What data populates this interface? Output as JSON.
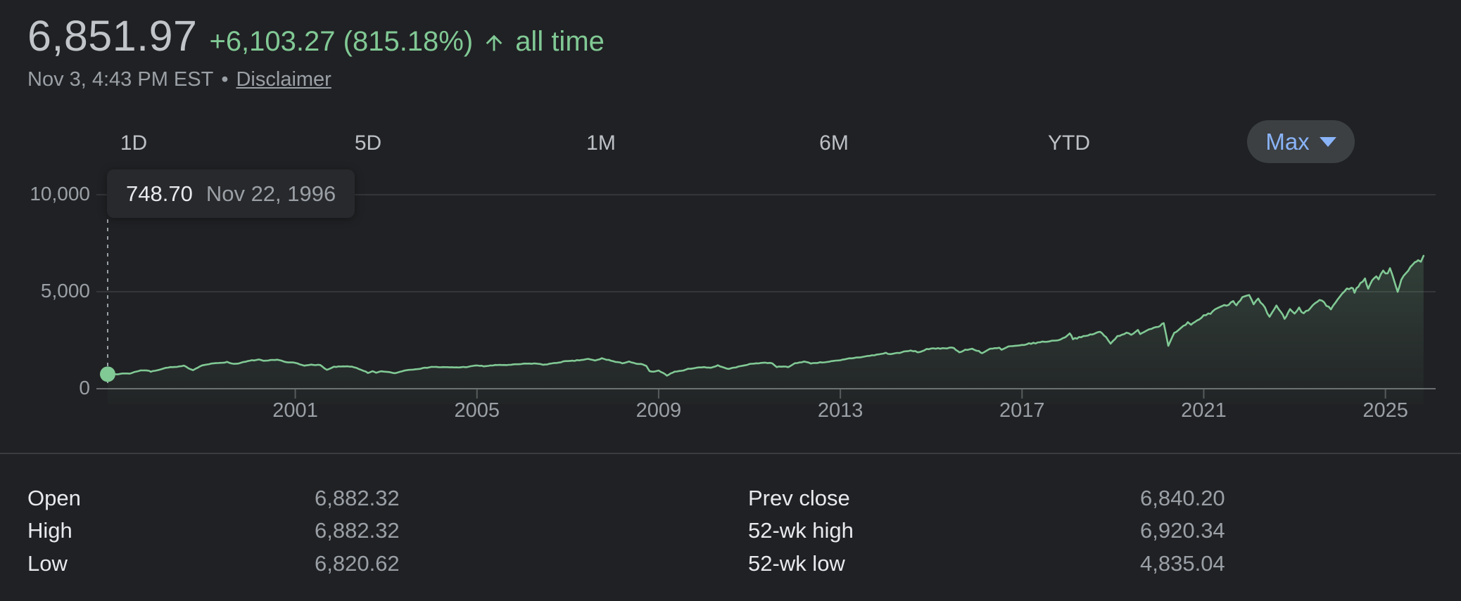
{
  "header": {
    "price": "6,851.97",
    "change": "+6,103.27 (815.18%)",
    "period": "all time",
    "timestamp": "Nov 3, 4:43 PM EST",
    "separator": "•",
    "disclaimer_label": "Disclaimer"
  },
  "colors": {
    "positive_green": "#81c995",
    "accent_blue": "#8ab4f8",
    "text_primary": "#e8eaed",
    "text_secondary": "#9aa0a6",
    "background": "#202124",
    "pill_background": "#3c4043"
  },
  "range_tabs": {
    "items": [
      {
        "label": "1D"
      },
      {
        "label": "5D"
      },
      {
        "label": "1M"
      },
      {
        "label": "6M"
      },
      {
        "label": "YTD"
      }
    ],
    "selected": {
      "label": "Max"
    }
  },
  "tooltip": {
    "value": "748.70",
    "date": "Nov 22, 1996"
  },
  "chart_data": {
    "type": "line",
    "title": "Index price history (Max range)",
    "legend": "none",
    "grid": "horizontal",
    "line_color": "#81c995",
    "x_range": [
      1996.87,
      2025.92
    ],
    "ylim": [
      0,
      10000
    ],
    "y_ticks": [
      {
        "label": "0",
        "value": 0
      },
      {
        "label": "5,000",
        "value": 5000
      },
      {
        "label": "10,000",
        "value": 10000
      }
    ],
    "x_ticks": [
      {
        "label": "2001",
        "year": 2001
      },
      {
        "label": "2005",
        "year": 2005
      },
      {
        "label": "2009",
        "year": 2009
      },
      {
        "label": "2013",
        "year": 2013
      },
      {
        "label": "2017",
        "year": 2017
      },
      {
        "label": "2021",
        "year": 2021
      },
      {
        "label": "2025",
        "year": 2025
      }
    ],
    "marker": {
      "x": 1996.87,
      "y": 748.7
    },
    "series": [
      {
        "name": "index-price",
        "points": [
          [
            1996.87,
            748.7
          ],
          [
            1997.0,
            757
          ],
          [
            1997.08,
            737
          ],
          [
            1997.2,
            790
          ],
          [
            1997.35,
            780
          ],
          [
            1997.45,
            850
          ],
          [
            1997.6,
            950
          ],
          [
            1997.75,
            940
          ],
          [
            1997.82,
            880
          ],
          [
            1998.0,
            980
          ],
          [
            1998.2,
            1100
          ],
          [
            1998.4,
            1120
          ],
          [
            1998.55,
            1180
          ],
          [
            1998.65,
            1060
          ],
          [
            1998.75,
            960
          ],
          [
            1998.9,
            1160
          ],
          [
            1999.0,
            1230
          ],
          [
            1999.2,
            1300
          ],
          [
            1999.35,
            1340
          ],
          [
            1999.5,
            1370
          ],
          [
            1999.65,
            1280
          ],
          [
            1999.8,
            1330
          ],
          [
            2000.0,
            1440
          ],
          [
            2000.2,
            1500
          ],
          [
            2000.3,
            1420
          ],
          [
            2000.45,
            1460
          ],
          [
            2000.65,
            1490
          ],
          [
            2000.8,
            1360
          ],
          [
            2001.0,
            1330
          ],
          [
            2001.2,
            1180
          ],
          [
            2001.35,
            1250
          ],
          [
            2001.55,
            1210
          ],
          [
            2001.7,
            970
          ],
          [
            2001.85,
            1120
          ],
          [
            2002.0,
            1140
          ],
          [
            2002.2,
            1150
          ],
          [
            2002.35,
            1070
          ],
          [
            2002.55,
            880
          ],
          [
            2002.6,
            800
          ],
          [
            2002.7,
            900
          ],
          [
            2002.78,
            820
          ],
          [
            2002.9,
            900
          ],
          [
            2003.05,
            855
          ],
          [
            2003.2,
            800
          ],
          [
            2003.4,
            940
          ],
          [
            2003.6,
            1000
          ],
          [
            2003.8,
            1050
          ],
          [
            2004.0,
            1130
          ],
          [
            2004.2,
            1110
          ],
          [
            2004.4,
            1100
          ],
          [
            2004.6,
            1100
          ],
          [
            2004.8,
            1130
          ],
          [
            2005.0,
            1200
          ],
          [
            2005.15,
            1160
          ],
          [
            2005.3,
            1190
          ],
          [
            2005.5,
            1230
          ],
          [
            2005.7,
            1220
          ],
          [
            2005.9,
            1260
          ],
          [
            2006.1,
            1290
          ],
          [
            2006.3,
            1300
          ],
          [
            2006.45,
            1240
          ],
          [
            2006.7,
            1310
          ],
          [
            2006.9,
            1400
          ],
          [
            2007.1,
            1430
          ],
          [
            2007.3,
            1480
          ],
          [
            2007.45,
            1530
          ],
          [
            2007.6,
            1450
          ],
          [
            2007.75,
            1560
          ],
          [
            2007.9,
            1480
          ],
          [
            2008.05,
            1380
          ],
          [
            2008.2,
            1320
          ],
          [
            2008.35,
            1400
          ],
          [
            2008.5,
            1280
          ],
          [
            2008.65,
            1260
          ],
          [
            2008.73,
            1160
          ],
          [
            2008.8,
            900
          ],
          [
            2008.9,
            870
          ],
          [
            2009.0,
            930
          ],
          [
            2009.1,
            820
          ],
          [
            2009.18,
            680
          ],
          [
            2009.35,
            880
          ],
          [
            2009.5,
            920
          ],
          [
            2009.65,
            1020
          ],
          [
            2009.8,
            1070
          ],
          [
            2010.0,
            1115
          ],
          [
            2010.15,
            1080
          ],
          [
            2010.3,
            1200
          ],
          [
            2010.45,
            1070
          ],
          [
            2010.55,
            1030
          ],
          [
            2010.7,
            1100
          ],
          [
            2010.9,
            1220
          ],
          [
            2011.1,
            1300
          ],
          [
            2011.3,
            1340
          ],
          [
            2011.5,
            1320
          ],
          [
            2011.6,
            1120
          ],
          [
            2011.75,
            1160
          ],
          [
            2011.85,
            1100
          ],
          [
            2012.0,
            1310
          ],
          [
            2012.2,
            1400
          ],
          [
            2012.35,
            1310
          ],
          [
            2012.6,
            1360
          ],
          [
            2012.8,
            1410
          ],
          [
            2013.0,
            1460
          ],
          [
            2013.2,
            1560
          ],
          [
            2013.45,
            1630
          ],
          [
            2013.6,
            1680
          ],
          [
            2013.8,
            1750
          ],
          [
            2014.0,
            1840
          ],
          [
            2014.1,
            1780
          ],
          [
            2014.35,
            1880
          ],
          [
            2014.55,
            1960
          ],
          [
            2014.75,
            1880
          ],
          [
            2014.9,
            2050
          ],
          [
            2015.1,
            2060
          ],
          [
            2015.3,
            2100
          ],
          [
            2015.5,
            2110
          ],
          [
            2015.62,
            1870
          ],
          [
            2015.75,
            1990
          ],
          [
            2015.9,
            2050
          ],
          [
            2016.05,
            1940
          ],
          [
            2016.12,
            1830
          ],
          [
            2016.3,
            2050
          ],
          [
            2016.5,
            2100
          ],
          [
            2016.55,
            2000
          ],
          [
            2016.7,
            2170
          ],
          [
            2016.9,
            2200
          ],
          [
            2017.1,
            2300
          ],
          [
            2017.3,
            2360
          ],
          [
            2017.5,
            2430
          ],
          [
            2017.7,
            2470
          ],
          [
            2017.9,
            2580
          ],
          [
            2018.05,
            2870
          ],
          [
            2018.12,
            2580
          ],
          [
            2018.3,
            2650
          ],
          [
            2018.5,
            2780
          ],
          [
            2018.72,
            2930
          ],
          [
            2018.85,
            2650
          ],
          [
            2018.95,
            2350
          ],
          [
            2019.1,
            2700
          ],
          [
            2019.3,
            2900
          ],
          [
            2019.4,
            2750
          ],
          [
            2019.55,
            3000
          ],
          [
            2019.6,
            2850
          ],
          [
            2019.8,
            3070
          ],
          [
            2020.0,
            3230
          ],
          [
            2020.12,
            3386
          ],
          [
            2020.22,
            2237
          ],
          [
            2020.35,
            2850
          ],
          [
            2020.5,
            3100
          ],
          [
            2020.65,
            3400
          ],
          [
            2020.72,
            3270
          ],
          [
            2020.85,
            3500
          ],
          [
            2021.0,
            3760
          ],
          [
            2021.15,
            3900
          ],
          [
            2021.3,
            4180
          ],
          [
            2021.5,
            4300
          ],
          [
            2021.65,
            4520
          ],
          [
            2021.72,
            4350
          ],
          [
            2021.85,
            4700
          ],
          [
            2022.0,
            4796
          ],
          [
            2022.1,
            4350
          ],
          [
            2022.2,
            4600
          ],
          [
            2022.35,
            4130
          ],
          [
            2022.45,
            3670
          ],
          [
            2022.6,
            4300
          ],
          [
            2022.7,
            3950
          ],
          [
            2022.78,
            3580
          ],
          [
            2022.9,
            4080
          ],
          [
            2023.0,
            3850
          ],
          [
            2023.1,
            4150
          ],
          [
            2023.2,
            3860
          ],
          [
            2023.35,
            4170
          ],
          [
            2023.55,
            4580
          ],
          [
            2023.65,
            4400
          ],
          [
            2023.8,
            4120
          ],
          [
            2023.95,
            4600
          ],
          [
            2024.0,
            4770
          ],
          [
            2024.15,
            5120
          ],
          [
            2024.25,
            5250
          ],
          [
            2024.32,
            5000
          ],
          [
            2024.45,
            5430
          ],
          [
            2024.55,
            5640
          ],
          [
            2024.62,
            5200
          ],
          [
            2024.75,
            5750
          ],
          [
            2024.85,
            5700
          ],
          [
            2024.95,
            6090
          ],
          [
            2025.05,
            5900
          ],
          [
            2025.1,
            6144
          ],
          [
            2025.2,
            5580
          ],
          [
            2025.27,
            4983
          ],
          [
            2025.35,
            5650
          ],
          [
            2025.45,
            6000
          ],
          [
            2025.55,
            6280
          ],
          [
            2025.65,
            6450
          ],
          [
            2025.72,
            6600
          ],
          [
            2025.78,
            6550
          ],
          [
            2025.84,
            6851.97
          ]
        ]
      }
    ]
  },
  "stats": {
    "left": [
      {
        "label": "Open",
        "value": "6,882.32"
      },
      {
        "label": "High",
        "value": "6,882.32"
      },
      {
        "label": "Low",
        "value": "6,820.62"
      }
    ],
    "right": [
      {
        "label": "Prev close",
        "value": "6,840.20"
      },
      {
        "label": "52-wk high",
        "value": "6,920.34"
      },
      {
        "label": "52-wk low",
        "value": "4,835.04"
      }
    ]
  }
}
